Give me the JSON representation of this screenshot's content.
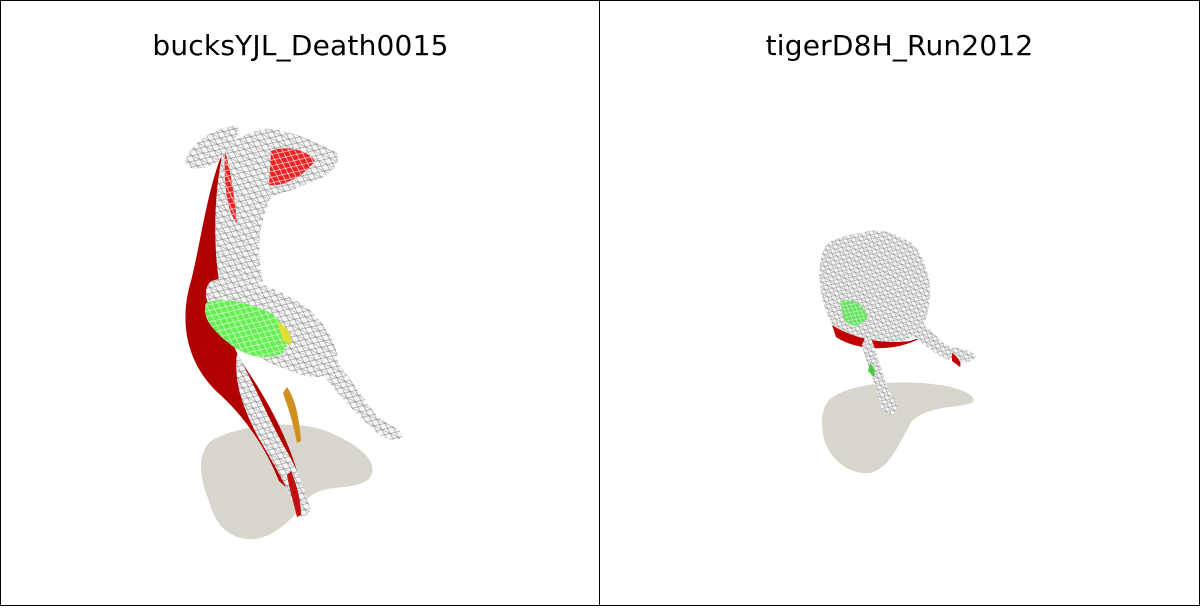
{
  "panels": [
    {
      "title": "bucksYJL_Death0015"
    },
    {
      "title": "tigerD8H_Run2012"
    }
  ],
  "colors": {
    "background": "#ffffff",
    "border": "#000000",
    "shadow": "#d8d5cd",
    "mesh": "#f2f2f2",
    "wire": "#9a9a9a",
    "red": "#e01010",
    "dark_red": "#a00000",
    "green": "#55ee55",
    "yellow": "#dddd22"
  }
}
